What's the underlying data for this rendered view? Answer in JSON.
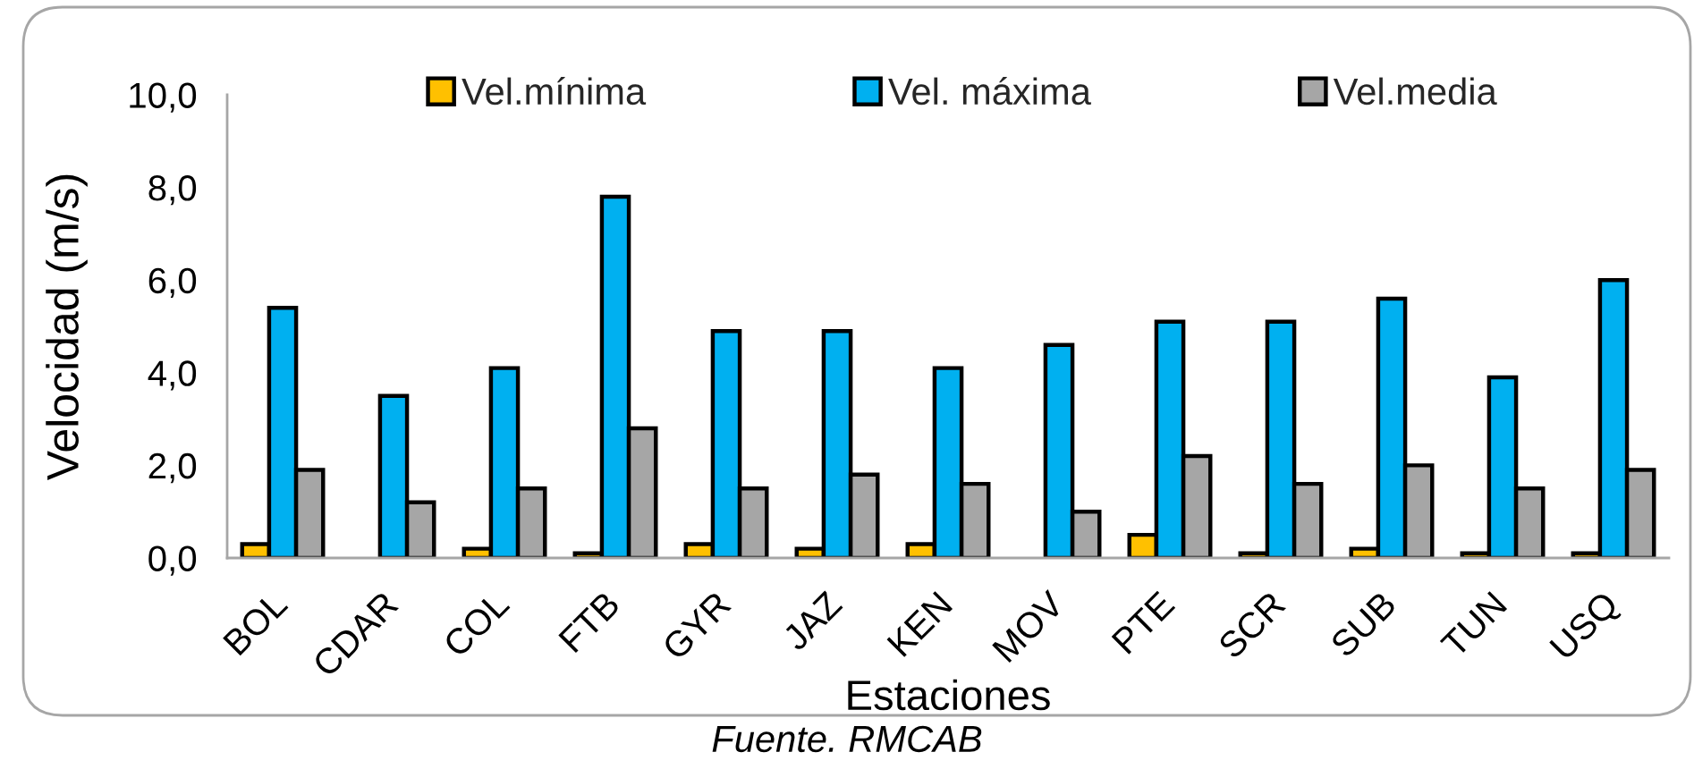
{
  "chart_data": {
    "type": "bar",
    "categories": [
      "BOL",
      "CDAR",
      "COL",
      "FTB",
      "GYR",
      "JAZ",
      "KEN",
      "MOV",
      "PTE",
      "SCR",
      "SUB",
      "TUN",
      "USQ"
    ],
    "series": [
      {
        "name": "Vel.mínima",
        "color": "#ffc000",
        "values": [
          0.3,
          null,
          0.2,
          0.1,
          0.3,
          0.2,
          0.3,
          null,
          0.5,
          0.1,
          0.2,
          0.1,
          0.1
        ]
      },
      {
        "name": "Vel. máxima",
        "color": "#00b0f0",
        "values": [
          5.4,
          3.5,
          4.1,
          7.8,
          4.9,
          4.9,
          4.1,
          4.6,
          5.1,
          5.1,
          5.6,
          3.9,
          6.0
        ]
      },
      {
        "name": "Vel.media",
        "color": "#a6a6a6",
        "values": [
          1.9,
          1.2,
          1.5,
          2.8,
          1.5,
          1.8,
          1.6,
          1.0,
          2.2,
          1.6,
          2.0,
          1.5,
          1.9
        ]
      }
    ],
    "xlabel": "Estaciones",
    "ylabel": "Velocidad (m/s)",
    "ylim": [
      0,
      10
    ],
    "yticks": [
      {
        "value": 0,
        "label": "0,0"
      },
      {
        "value": 2,
        "label": "2,0"
      },
      {
        "value": 4,
        "label": "4,0"
      },
      {
        "value": 6,
        "label": "6,0"
      },
      {
        "value": 8,
        "label": "8,0"
      },
      {
        "value": 10,
        "label": "10,0"
      }
    ],
    "legend": "top",
    "grid": false,
    "annotations": [
      "Fuente. RMCAB"
    ]
  }
}
